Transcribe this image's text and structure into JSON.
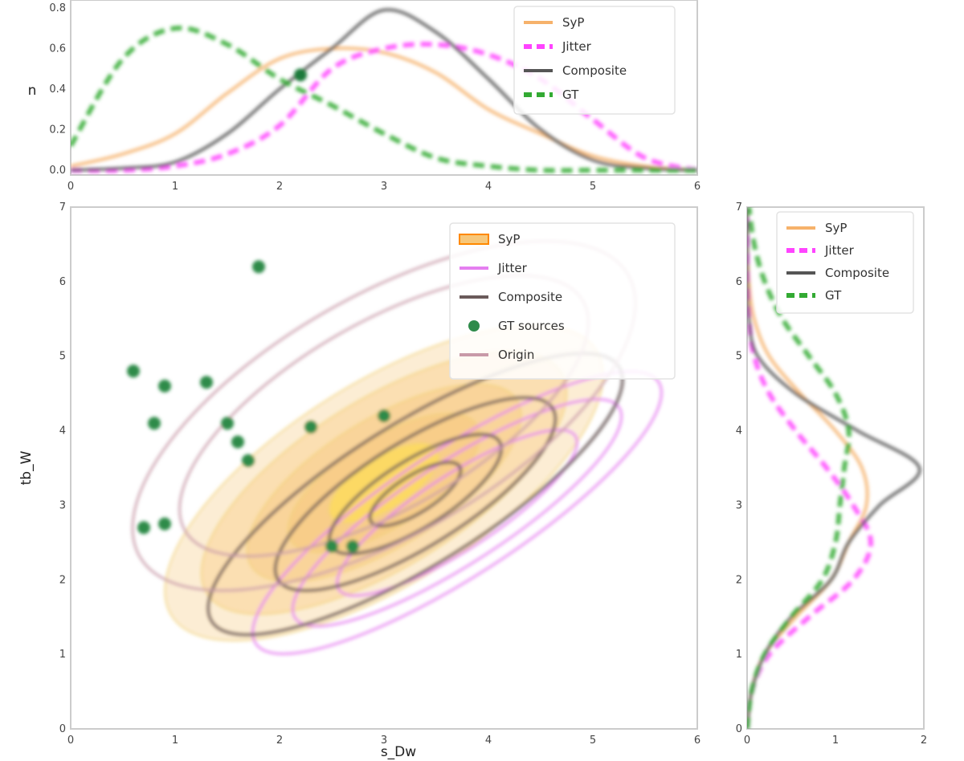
{
  "chart_data": [
    {
      "panel": "top-marginal",
      "type": "line",
      "xlim": [
        0,
        6
      ],
      "ylim": [
        0,
        0.8
      ],
      "ylabel": "n",
      "x_ticks": [
        "0",
        "1",
        "2",
        "3",
        "4",
        "5",
        "6"
      ],
      "y_ticks": [
        "0.0",
        "0.2",
        "0.4",
        "0.6",
        "0.8"
      ],
      "legend": {
        "position": "top-right",
        "entries": [
          "SyP",
          "Jitter",
          "Composite",
          "GT"
        ]
      },
      "series": [
        {
          "name": "SyP",
          "color": "#f6b26b",
          "style": "solid",
          "x": [
            0,
            0.5,
            1,
            1.5,
            2,
            2.5,
            3,
            3.5,
            4,
            4.5,
            5,
            5.5,
            6
          ],
          "y": [
            0.02,
            0.08,
            0.18,
            0.38,
            0.55,
            0.6,
            0.58,
            0.48,
            0.3,
            0.18,
            0.07,
            0.02,
            0.0
          ]
        },
        {
          "name": "Jitter",
          "color": "#ff44ff",
          "style": "dashed",
          "x": [
            0,
            0.5,
            1,
            1.5,
            2,
            2.5,
            3,
            3.5,
            4,
            4.5,
            5,
            5.5,
            6
          ],
          "y": [
            0.0,
            0.0,
            0.02,
            0.08,
            0.22,
            0.5,
            0.6,
            0.62,
            0.57,
            0.45,
            0.25,
            0.06,
            0.0
          ]
        },
        {
          "name": "Composite",
          "color": "#555555",
          "style": "solid",
          "x": [
            0,
            0.5,
            1,
            1.5,
            2,
            2.5,
            3,
            3.5,
            4,
            4.5,
            5,
            5.5,
            6
          ],
          "y": [
            0.0,
            0.01,
            0.04,
            0.18,
            0.4,
            0.6,
            0.79,
            0.68,
            0.45,
            0.2,
            0.05,
            0.01,
            0.0
          ]
        },
        {
          "name": "GT",
          "color": "#33aa33",
          "style": "dashed",
          "x": [
            0,
            0.5,
            1,
            1.5,
            2,
            2.5,
            3,
            3.5,
            4,
            4.5,
            5,
            5.5,
            6
          ],
          "y": [
            0.12,
            0.55,
            0.7,
            0.62,
            0.45,
            0.32,
            0.18,
            0.06,
            0.02,
            0.0,
            0.0,
            0.0,
            0.0
          ]
        }
      ],
      "markers": [
        {
          "x": 2.2,
          "y": 0.47,
          "color": "#1f7a3a"
        }
      ]
    },
    {
      "panel": "joint",
      "type": "scatter",
      "xlim": [
        0,
        6
      ],
      "ylim": [
        0,
        7
      ],
      "xlabel": "s_Dw",
      "ylabel": "tb_W",
      "x_ticks": [
        "0",
        "1",
        "2",
        "3",
        "4",
        "5",
        "6"
      ],
      "y_ticks": [
        "0",
        "1",
        "2",
        "3",
        "4",
        "5",
        "6",
        "7"
      ],
      "legend": {
        "position": "top-right",
        "entries": [
          "SyP",
          "Jitter",
          "Composite",
          "GT sources",
          "Origin"
        ]
      },
      "contours": [
        {
          "name": "SyP",
          "color": "#f7c77a",
          "filled": true,
          "center": [
            3.0,
            3.3
          ],
          "angle_deg": -32,
          "levels": [
            {
              "rx": 2.4,
              "ry": 1.35
            },
            {
              "rx": 2.0,
              "ry": 1.12
            },
            {
              "rx": 1.5,
              "ry": 0.85
            },
            {
              "rx": 1.05,
              "ry": 0.6
            },
            {
              "rx": 0.6,
              "ry": 0.35
            }
          ]
        },
        {
          "name": "Jitter",
          "color": "#e57ff0",
          "filled": false,
          "center": [
            3.7,
            2.9
          ],
          "angle_deg": -33,
          "levels": [
            {
              "rx": 2.3,
              "ry": 0.85
            },
            {
              "rx": 1.85,
              "ry": 0.68
            },
            {
              "rx": 1.35,
              "ry": 0.5
            }
          ]
        },
        {
          "name": "Composite",
          "color": "#6a5a5a",
          "filled": false,
          "center": [
            3.3,
            3.15
          ],
          "angle_deg": -32,
          "levels": [
            {
              "rx": 2.3,
              "ry": 0.95
            },
            {
              "rx": 1.55,
              "ry": 0.7
            },
            {
              "rx": 0.95,
              "ry": 0.45
            },
            {
              "rx": 0.5,
              "ry": 0.25
            }
          ]
        },
        {
          "name": "Origin",
          "color": "#c89aa8",
          "filled": false,
          "center": [
            3.0,
            4.2
          ],
          "angle_deg": -30,
          "levels": [
            {
              "rx": 2.7,
              "ry": 1.6
            },
            {
              "rx": 2.2,
              "ry": 1.25
            }
          ]
        }
      ],
      "points": {
        "name": "GT sources",
        "color": "#2e8b4a",
        "x": [
          1.8,
          0.6,
          0.9,
          1.3,
          0.8,
          1.5,
          1.6,
          1.7,
          2.3,
          3.0,
          0.7,
          0.9,
          2.5,
          2.7
        ],
        "y": [
          6.2,
          4.8,
          4.6,
          4.65,
          4.1,
          4.1,
          3.85,
          3.6,
          4.05,
          4.2,
          2.7,
          2.75,
          2.45,
          2.45
        ]
      }
    },
    {
      "panel": "right-marginal",
      "type": "line",
      "xlim": [
        0,
        2
      ],
      "ylim": [
        0,
        7
      ],
      "x_ticks": [
        "0",
        "1",
        "2"
      ],
      "y_ticks": [
        "0",
        "1",
        "2",
        "3",
        "4",
        "5",
        "6",
        "7"
      ],
      "legend": {
        "position": "top-right",
        "entries": [
          "SyP",
          "Jitter",
          "Composite",
          "GT"
        ]
      },
      "series": [
        {
          "name": "SyP",
          "color": "#f6b26b",
          "style": "solid",
          "y": [
            0,
            0.5,
            1,
            1.5,
            2,
            2.5,
            3,
            3.5,
            4,
            4.5,
            5,
            5.5,
            6,
            6.5,
            7
          ],
          "x": [
            0.0,
            0.05,
            0.2,
            0.55,
            0.95,
            1.15,
            1.35,
            1.3,
            1.0,
            0.6,
            0.25,
            0.08,
            0.02,
            0.0,
            0.0
          ]
        },
        {
          "name": "Jitter",
          "color": "#ff44ff",
          "style": "dashed",
          "y": [
            0,
            0.5,
            1,
            1.5,
            2,
            2.5,
            3,
            3.5,
            4,
            4.5,
            5,
            5.5,
            6,
            6.5,
            7
          ],
          "x": [
            0.0,
            0.05,
            0.25,
            0.7,
            1.2,
            1.4,
            1.2,
            0.9,
            0.55,
            0.25,
            0.08,
            0.02,
            0.0,
            0.0,
            0.0
          ]
        },
        {
          "name": "Composite",
          "color": "#555555",
          "style": "solid",
          "y": [
            0,
            0.5,
            1,
            1.5,
            2,
            2.5,
            3,
            3.5,
            4,
            4.5,
            5,
            5.5,
            6,
            6.5,
            7
          ],
          "x": [
            0.0,
            0.05,
            0.2,
            0.5,
            0.95,
            1.15,
            1.5,
            1.95,
            1.25,
            0.55,
            0.12,
            0.02,
            0.0,
            0.0,
            0.0
          ]
        },
        {
          "name": "GT",
          "color": "#33aa33",
          "style": "dashed",
          "y": [
            0,
            0.5,
            1,
            1.5,
            2,
            2.5,
            3,
            3.5,
            4,
            4.5,
            5,
            5.5,
            6,
            6.5,
            7
          ],
          "x": [
            0.0,
            0.05,
            0.2,
            0.5,
            0.85,
            1.0,
            1.05,
            1.1,
            1.15,
            1.0,
            0.7,
            0.4,
            0.2,
            0.08,
            0.02
          ]
        }
      ]
    }
  ]
}
